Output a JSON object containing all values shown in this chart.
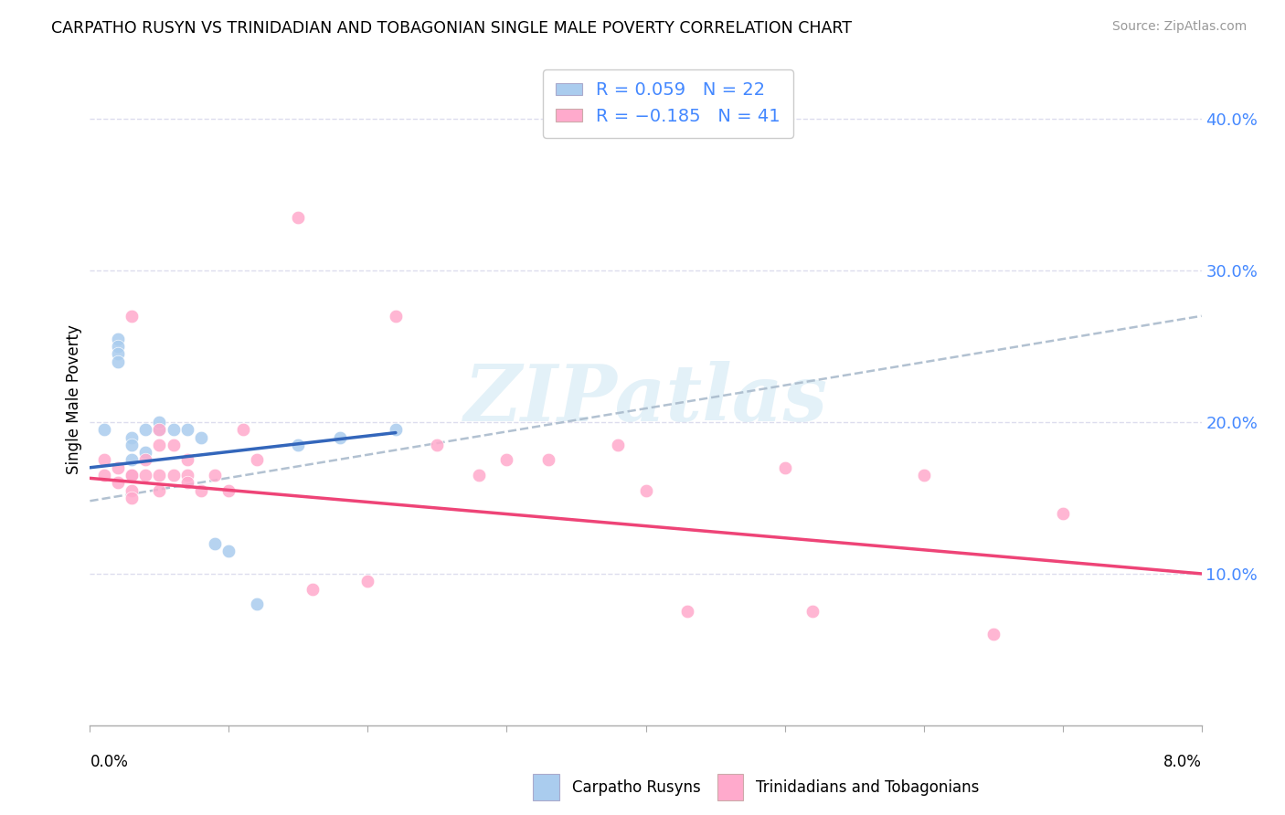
{
  "title": "CARPATHO RUSYN VS TRINIDADIAN AND TOBAGONIAN SINGLE MALE POVERTY CORRELATION CHART",
  "source": "Source: ZipAtlas.com",
  "ylabel": "Single Male Poverty",
  "y_ticks": [
    0.1,
    0.2,
    0.3,
    0.4
  ],
  "y_tick_labels": [
    "10.0%",
    "20.0%",
    "30.0%",
    "40.0%"
  ],
  "x_range": [
    0.0,
    0.08
  ],
  "y_range": [
    0.0,
    0.43
  ],
  "blue_scatter_color": "#AACCEE",
  "pink_scatter_color": "#FFAACC",
  "blue_line_color": "#3366BB",
  "pink_line_color": "#EE4477",
  "dashed_line_color": "#AABBCC",
  "grid_color": "#DDDDEE",
  "carpatho_x": [
    0.001,
    0.002,
    0.002,
    0.002,
    0.002,
    0.003,
    0.003,
    0.003,
    0.003,
    0.004,
    0.004,
    0.005,
    0.005,
    0.006,
    0.007,
    0.008,
    0.009,
    0.01,
    0.012,
    0.015,
    0.018,
    0.022
  ],
  "carpatho_y": [
    0.195,
    0.255,
    0.25,
    0.245,
    0.24,
    0.19,
    0.185,
    0.175,
    0.165,
    0.195,
    0.18,
    0.195,
    0.2,
    0.195,
    0.195,
    0.19,
    0.12,
    0.115,
    0.08,
    0.185,
    0.19,
    0.195
  ],
  "trinidadian_x": [
    0.001,
    0.001,
    0.002,
    0.002,
    0.003,
    0.003,
    0.003,
    0.003,
    0.003,
    0.004,
    0.004,
    0.005,
    0.005,
    0.005,
    0.005,
    0.006,
    0.006,
    0.007,
    0.007,
    0.007,
    0.008,
    0.009,
    0.01,
    0.011,
    0.012,
    0.015,
    0.016,
    0.02,
    0.022,
    0.025,
    0.028,
    0.03,
    0.033,
    0.038,
    0.04,
    0.043,
    0.05,
    0.052,
    0.06,
    0.065,
    0.07
  ],
  "trinidadian_y": [
    0.165,
    0.175,
    0.16,
    0.17,
    0.165,
    0.165,
    0.155,
    0.15,
    0.27,
    0.175,
    0.165,
    0.165,
    0.155,
    0.185,
    0.195,
    0.185,
    0.165,
    0.175,
    0.165,
    0.16,
    0.155,
    0.165,
    0.155,
    0.195,
    0.175,
    0.335,
    0.09,
    0.095,
    0.27,
    0.185,
    0.165,
    0.175,
    0.175,
    0.185,
    0.155,
    0.075,
    0.17,
    0.075,
    0.165,
    0.06,
    0.14
  ],
  "blue_line_x": [
    0.0,
    0.022
  ],
  "blue_line_y": [
    0.17,
    0.193
  ],
  "pink_line_x": [
    0.0,
    0.08
  ],
  "pink_line_y": [
    0.163,
    0.1
  ],
  "dash_line_x": [
    0.0,
    0.08
  ],
  "dash_line_y": [
    0.148,
    0.27
  ],
  "bottom_label1": "Carpatho Rusyns",
  "bottom_label2": "Trinidadians and Tobagonians",
  "legend_text1": "R = 0.059   N = 22",
  "legend_text2": "R = −0.185   N = 41",
  "legend_color": "#4488FF",
  "watermark_text": "ZIPatlas",
  "watermark_color": "#BBDDEE"
}
